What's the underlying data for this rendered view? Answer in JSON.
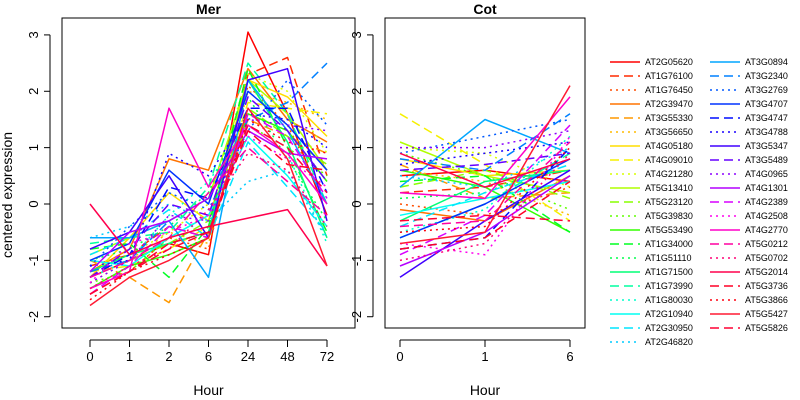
{
  "chart_data": {
    "type": "line",
    "ylabel": "centered expression",
    "panels": [
      {
        "title": "Mer",
        "xlabel": "Hour",
        "x": [
          "0",
          "1",
          "2",
          "6",
          "24",
          "48",
          "72"
        ],
        "ylim": [
          -2.2,
          3.3
        ],
        "yticks": [
          "-2",
          "-1",
          "0",
          "1",
          "2",
          "3"
        ],
        "series": [
          {
            "name": "AT2G05620",
            "values": [
              -1.3,
              -1.0,
              -0.7,
              -0.9,
              3.05,
              1.6,
              -0.2
            ]
          },
          {
            "name": "AT1G76100",
            "values": [
              -1.1,
              -0.9,
              -0.4,
              -0.6,
              2.3,
              2.6,
              0.5
            ]
          },
          {
            "name": "AT1G76450",
            "values": [
              -1.5,
              -1.2,
              -0.6,
              -0.8,
              2.1,
              1.4,
              0.0
            ]
          },
          {
            "name": "AT2G39470",
            "values": [
              -1.2,
              -0.8,
              0.8,
              0.6,
              2.4,
              1.5,
              1.1
            ]
          },
          {
            "name": "AT3G55330",
            "values": [
              -1.0,
              -1.3,
              -1.75,
              -0.5,
              1.5,
              1.2,
              0.9
            ]
          },
          {
            "name": "AT3G56650",
            "values": [
              -1.4,
              -1.0,
              -0.5,
              -0.7,
              2.0,
              1.8,
              1.5
            ]
          },
          {
            "name": "AT4G05180",
            "values": [
              -1.3,
              -0.6,
              0.2,
              -0.3,
              2.2,
              1.9,
              1.2
            ]
          },
          {
            "name": "AT4G09010",
            "values": [
              -1.2,
              -1.1,
              -0.8,
              -0.4,
              1.8,
              1.7,
              1.6
            ]
          },
          {
            "name": "AT4G21280",
            "values": [
              -1.1,
              -0.9,
              -0.5,
              0.0,
              2.3,
              2.0,
              0.9
            ]
          },
          {
            "name": "AT5G13410",
            "values": [
              -0.9,
              -0.6,
              -0.3,
              0.1,
              2.2,
              1.6,
              0.6
            ]
          },
          {
            "name": "AT5G23120",
            "values": [
              -1.2,
              -1.0,
              -0.7,
              -0.3,
              1.7,
              1.2,
              0.7
            ]
          },
          {
            "name": "AT5G39830",
            "values": [
              -1.4,
              -1.2,
              -0.6,
              -0.2,
              1.4,
              1.0,
              0.5
            ]
          },
          {
            "name": "AT5G53490",
            "values": [
              -1.5,
              -1.1,
              -0.9,
              -0.6,
              1.6,
              1.3,
              0.4
            ]
          },
          {
            "name": "AT1G34000",
            "values": [
              -0.8,
              -0.7,
              -1.3,
              -0.4,
              2.4,
              1.0,
              -0.5
            ]
          },
          {
            "name": "AT1G51110",
            "values": [
              -1.0,
              -0.8,
              -0.4,
              0.2,
              1.9,
              0.8,
              -0.3
            ]
          },
          {
            "name": "AT1G71500",
            "values": [
              -1.2,
              -0.9,
              -0.7,
              -0.5,
              2.2,
              1.1,
              -0.6
            ]
          },
          {
            "name": "AT1G73990",
            "values": [
              -0.7,
              -0.6,
              -0.5,
              0.3,
              2.5,
              1.6,
              0.0
            ]
          },
          {
            "name": "AT1G80030",
            "values": [
              -1.3,
              -1.0,
              -0.2,
              0.4,
              1.4,
              0.9,
              -0.7
            ]
          },
          {
            "name": "AT2G10940",
            "values": [
              -1.0,
              -1.1,
              -0.6,
              -0.2,
              1.2,
              0.5,
              -0.4
            ]
          },
          {
            "name": "AT2G30950",
            "values": [
              -0.9,
              -0.6,
              -0.1,
              -0.6,
              1.1,
              0.3,
              -0.5
            ]
          },
          {
            "name": "AT2G46820",
            "values": [
              -0.6,
              -0.4,
              0.0,
              -0.3,
              0.4,
              0.6,
              -0.6
            ]
          },
          {
            "name": "AT3G0894",
            "values": [
              -0.6,
              -0.6,
              -0.3,
              -1.3,
              2.2,
              1.3,
              0.0
            ]
          },
          {
            "name": "AT3G2340",
            "values": [
              -1.2,
              -1.0,
              -0.3,
              0.1,
              1.5,
              1.8,
              2.5
            ]
          },
          {
            "name": "AT3G2769",
            "values": [
              -1.1,
              -0.4,
              0.2,
              -0.1,
              1.3,
              2.2,
              1.4
            ]
          },
          {
            "name": "AT3G4707",
            "values": [
              -1.0,
              -0.7,
              0.6,
              0.0,
              2.0,
              1.4,
              0.6
            ]
          },
          {
            "name": "AT3G4747",
            "values": [
              -1.3,
              -0.9,
              0.3,
              0.1,
              1.7,
              1.7,
              0.2
            ]
          },
          {
            "name": "AT3G4788",
            "values": [
              -1.1,
              -1.0,
              0.9,
              0.5,
              1.6,
              1.5,
              1.0
            ]
          },
          {
            "name": "AT3G5347",
            "values": [
              -0.8,
              -0.5,
              0.5,
              -0.6,
              2.2,
              2.4,
              -0.3
            ]
          },
          {
            "name": "AT3G5489",
            "values": [
              -1.3,
              -0.8,
              0.0,
              -0.2,
              1.9,
              1.3,
              0.4
            ]
          },
          {
            "name": "AT4G0965",
            "values": [
              -1.4,
              -1.0,
              -0.2,
              -0.3,
              1.5,
              1.4,
              1.3
            ]
          },
          {
            "name": "AT4G1301",
            "values": [
              -1.2,
              -0.5,
              -0.3,
              0.1,
              1.3,
              0.9,
              0.8
            ]
          },
          {
            "name": "AT4G2389",
            "values": [
              -1.6,
              -1.1,
              -0.4,
              -0.6,
              1.6,
              1.2,
              0.1
            ]
          },
          {
            "name": "AT4G2508",
            "values": [
              -1.4,
              -0.7,
              -0.5,
              -0.2,
              1.2,
              0.8,
              0.3
            ]
          },
          {
            "name": "AT4G2770",
            "values": [
              -1.5,
              -1.2,
              1.7,
              0.3,
              1.4,
              0.9,
              0.0
            ]
          },
          {
            "name": "AT5G0212",
            "values": [
              -1.3,
              -1.0,
              -0.6,
              0.2,
              1.0,
              0.4,
              -0.2
            ]
          },
          {
            "name": "AT5G0702",
            "values": [
              -1.5,
              -1.1,
              -0.8,
              -0.1,
              0.9,
              0.6,
              -0.4
            ]
          },
          {
            "name": "AT5G2014",
            "values": [
              0.0,
              -0.9,
              -0.6,
              -0.4,
              -0.25,
              -0.1,
              -1.1
            ]
          },
          {
            "name": "AT5G3736",
            "values": [
              -1.6,
              -1.2,
              -0.7,
              -0.5,
              1.3,
              0.7,
              0.6
            ]
          },
          {
            "name": "AT5G3866",
            "values": [
              -1.7,
              -1.2,
              -0.9,
              -0.6,
              1.5,
              1.1,
              0.9
            ]
          },
          {
            "name": "AT5G5427",
            "values": [
              -1.8,
              -1.3,
              -1.0,
              -0.6,
              1.7,
              0.8,
              -1.1
            ]
          },
          {
            "name": "AT5G5826",
            "values": [
              -1.6,
              -1.2,
              -0.8,
              -0.5,
              1.4,
              1.0,
              0.2
            ]
          }
        ]
      },
      {
        "title": "Cot",
        "xlabel": "Hour",
        "x": [
          "0",
          "1",
          "6"
        ],
        "ylim": [
          -2.2,
          3.3
        ],
        "yticks": [
          "-2",
          "-1",
          "0",
          "1",
          "2",
          "3"
        ],
        "series": [
          {
            "name": "AT2G05620",
            "values": [
              0.5,
              0.6,
              0.4
            ]
          },
          {
            "name": "AT1G76100",
            "values": [
              0.2,
              0.3,
              0.6
            ]
          },
          {
            "name": "AT1G76450",
            "values": [
              0.0,
              -0.2,
              0.3
            ]
          },
          {
            "name": "AT2G39470",
            "values": [
              -0.1,
              -0.3,
              0.5
            ]
          },
          {
            "name": "AT3G55330",
            "values": [
              0.7,
              0.1,
              0.2
            ]
          },
          {
            "name": "AT3G56650",
            "values": [
              0.6,
              0.4,
              -0.2
            ]
          },
          {
            "name": "AT4G05180",
            "values": [
              0.8,
              0.5,
              0.6
            ]
          },
          {
            "name": "AT4G09010",
            "values": [
              1.6,
              0.7,
              -0.3
            ]
          },
          {
            "name": "AT4G21280",
            "values": [
              1.0,
              0.9,
              0.3
            ]
          },
          {
            "name": "AT5G13410",
            "values": [
              1.1,
              0.5,
              0.2
            ]
          },
          {
            "name": "AT5G23120",
            "values": [
              0.3,
              0.6,
              0.1
            ]
          },
          {
            "name": "AT5G39830",
            "values": [
              0.9,
              0.5,
              -0.1
            ]
          },
          {
            "name": "AT5G53490",
            "values": [
              0.6,
              0.3,
              -0.5
            ]
          },
          {
            "name": "AT1G34000",
            "values": [
              0.4,
              0.5,
              -0.5
            ]
          },
          {
            "name": "AT1G51110",
            "values": [
              0.1,
              0.2,
              0.8
            ]
          },
          {
            "name": "AT1G71500",
            "values": [
              -0.3,
              0.4,
              0.6
            ]
          },
          {
            "name": "AT1G73990",
            "values": [
              -0.6,
              0.0,
              0.9
            ]
          },
          {
            "name": "AT1G80030",
            "values": [
              -0.5,
              -0.1,
              1.2
            ]
          },
          {
            "name": "AT2G10940",
            "values": [
              -0.2,
              0.1,
              0.4
            ]
          },
          {
            "name": "AT2G30950",
            "values": [
              -0.4,
              0.2,
              0.7
            ]
          },
          {
            "name": "AT2G46820",
            "values": [
              0.5,
              0.3,
              1.0
            ]
          },
          {
            "name": "AT3G0894",
            "values": [
              0.3,
              1.5,
              0.9
            ]
          },
          {
            "name": "AT3G2340",
            "values": [
              0.8,
              0.6,
              1.6
            ]
          },
          {
            "name": "AT3G2769",
            "values": [
              0.9,
              1.2,
              1.5
            ]
          },
          {
            "name": "AT3G4707",
            "values": [
              -0.6,
              0.0,
              0.8
            ]
          },
          {
            "name": "AT3G4747",
            "values": [
              -0.8,
              -0.6,
              1.0
            ]
          },
          {
            "name": "AT3G4788",
            "values": [
              0.7,
              0.9,
              1.1
            ]
          },
          {
            "name": "AT3G5347",
            "values": [
              -1.3,
              -0.3,
              0.6
            ]
          },
          {
            "name": "AT3G5489",
            "values": [
              0.6,
              0.7,
              0.9
            ]
          },
          {
            "name": "AT4G0965",
            "values": [
              1.0,
              1.0,
              1.3
            ]
          },
          {
            "name": "AT4G1301",
            "values": [
              -1.1,
              -0.5,
              0.5
            ]
          },
          {
            "name": "AT4G2389",
            "values": [
              -0.9,
              -0.2,
              1.4
            ]
          },
          {
            "name": "AT4G2508",
            "values": [
              -0.7,
              -0.9,
              1.2
            ]
          },
          {
            "name": "AT4G2770",
            "values": [
              0.2,
              0.1,
              1.9
            ]
          },
          {
            "name": "AT5G0212",
            "values": [
              -0.4,
              -0.3,
              1.1
            ]
          },
          {
            "name": "AT5G0702",
            "values": [
              -1.0,
              -0.7,
              0.9
            ]
          },
          {
            "name": "AT5G2014",
            "values": [
              0.9,
              0.3,
              0.8
            ]
          },
          {
            "name": "AT5G3736",
            "values": [
              -0.8,
              -0.6,
              0.4
            ]
          },
          {
            "name": "AT5G3866",
            "values": [
              -0.5,
              -0.4,
              1.0
            ]
          },
          {
            "name": "AT5G5427",
            "values": [
              -0.7,
              -0.5,
              2.1
            ]
          },
          {
            "name": "AT5G5826",
            "values": [
              -0.3,
              -0.2,
              -0.3
            ]
          }
        ]
      }
    ],
    "legend": {
      "placement": "right",
      "columns": [
        [
          "AT2G05620",
          "AT1G76100",
          "AT1G76450",
          "AT2G39470",
          "AT3G55330",
          "AT3G56650",
          "AT4G05180",
          "AT4G09010",
          "AT4G21280",
          "AT5G13410",
          "AT5G23120",
          "AT5G39830",
          "AT5G53490",
          "AT1G34000",
          "AT1G51110",
          "AT1G71500",
          "AT1G73990",
          "AT1G80030",
          "AT2G10940",
          "AT2G30950",
          "AT2G46820"
        ],
        [
          "AT3G0894",
          "AT3G2340",
          "AT3G2769",
          "AT3G4707",
          "AT3G4747",
          "AT3G4788",
          "AT3G5347",
          "AT3G5489",
          "AT4G0965",
          "AT4G1301",
          "AT4G2389",
          "AT4G2508",
          "AT4G2770",
          "AT5G0212",
          "AT5G0702",
          "AT5G2014",
          "AT5G3736",
          "AT5G3866",
          "AT5G5427",
          "AT5G5826"
        ]
      ]
    },
    "colors": [
      "#ff0000",
      "#ff2a00",
      "#ff4d00",
      "#ff7300",
      "#ff9900",
      "#ffbb00",
      "#ffdd00",
      "#f5f000",
      "#d9ff00",
      "#b0ff00",
      "#88ff00",
      "#60ff00",
      "#33ff00",
      "#00ff22",
      "#00ff4d",
      "#00ff77",
      "#00ffa0",
      "#00ffcc",
      "#00fff2",
      "#00e5ff",
      "#00ccff",
      "#00a6ff",
      "#0080ff",
      "#0059ff",
      "#0033ff",
      "#000dff",
      "#1a00ff",
      "#4000ff",
      "#6600ff",
      "#8c00ff",
      "#b300ff",
      "#d900ff",
      "#ff00ee",
      "#ff00c8",
      "#ff00a0",
      "#ff0077",
      "#ff004d",
      "#ff0026",
      "#ff0010",
      "#ff1a33",
      "#ff0033"
    ],
    "line_styles": [
      "solid",
      "dashed",
      "dotted"
    ]
  }
}
